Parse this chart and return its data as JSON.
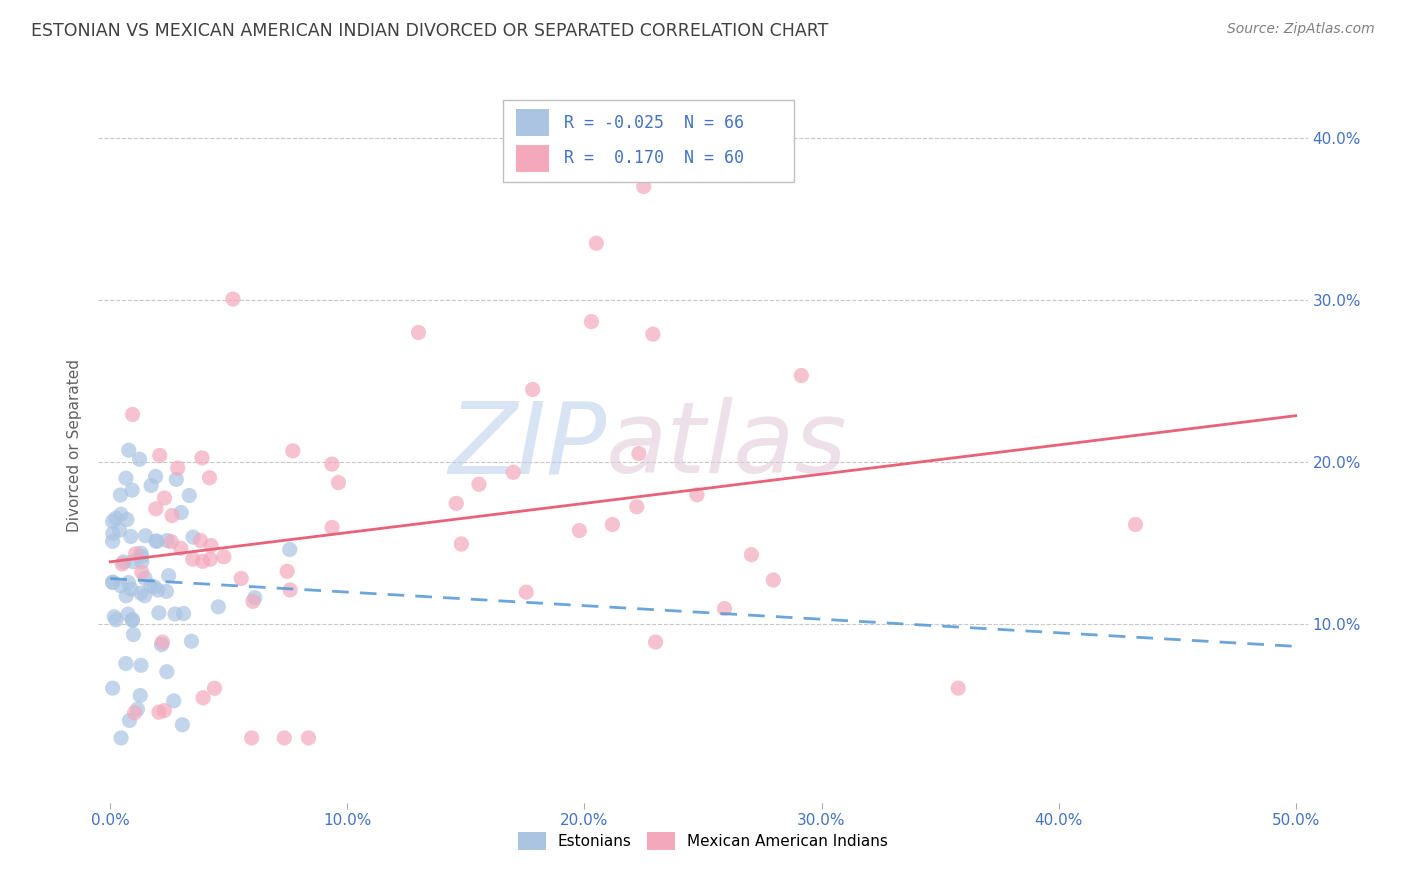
{
  "title": "ESTONIAN VS MEXICAN AMERICAN INDIAN DIVORCED OR SEPARATED CORRELATION CHART",
  "source": "Source: ZipAtlas.com",
  "ylabel": "Divorced or Separated",
  "watermark_zip": "ZIP",
  "watermark_atlas": "atlas",
  "estonian_color": "#aac4e2",
  "mexican_color": "#f4a8bc",
  "estonian_line_color": "#5b9bd5",
  "mexican_line_color": "#e8627a",
  "background_color": "#ffffff",
  "grid_color": "#c8c8c8",
  "title_color": "#404040",
  "axis_label_color": "#4472c4",
  "source_color": "#808080",
  "ylabel_color": "#606060",
  "xlim": [
    -0.005,
    0.505
  ],
  "ylim": [
    -0.01,
    0.43
  ],
  "x_ticks": [
    0.0,
    0.1,
    0.2,
    0.3,
    0.4,
    0.5
  ],
  "x_tick_labels": [
    "0.0%",
    "10.0%",
    "20.0%",
    "30.0%",
    "40.0%",
    "50.0%"
  ],
  "y_ticks": [
    0.1,
    0.2,
    0.3,
    0.4
  ],
  "y_tick_labels": [
    "10.0%",
    "20.0%",
    "30.0%",
    "40.0%"
  ],
  "legend_r1": "R = -0.025",
  "legend_n1": "N = 66",
  "legend_r2": "R =  0.170",
  "legend_n2": "N = 60",
  "bottom_legend": [
    "Estonians",
    "Mexican American Indians"
  ],
  "estonian_r": -0.025,
  "estonian_n": 66,
  "mexican_r": 0.17,
  "mexican_n": 60,
  "scatter_size": 120,
  "scatter_alpha": 0.7,
  "line_width": 2.0
}
